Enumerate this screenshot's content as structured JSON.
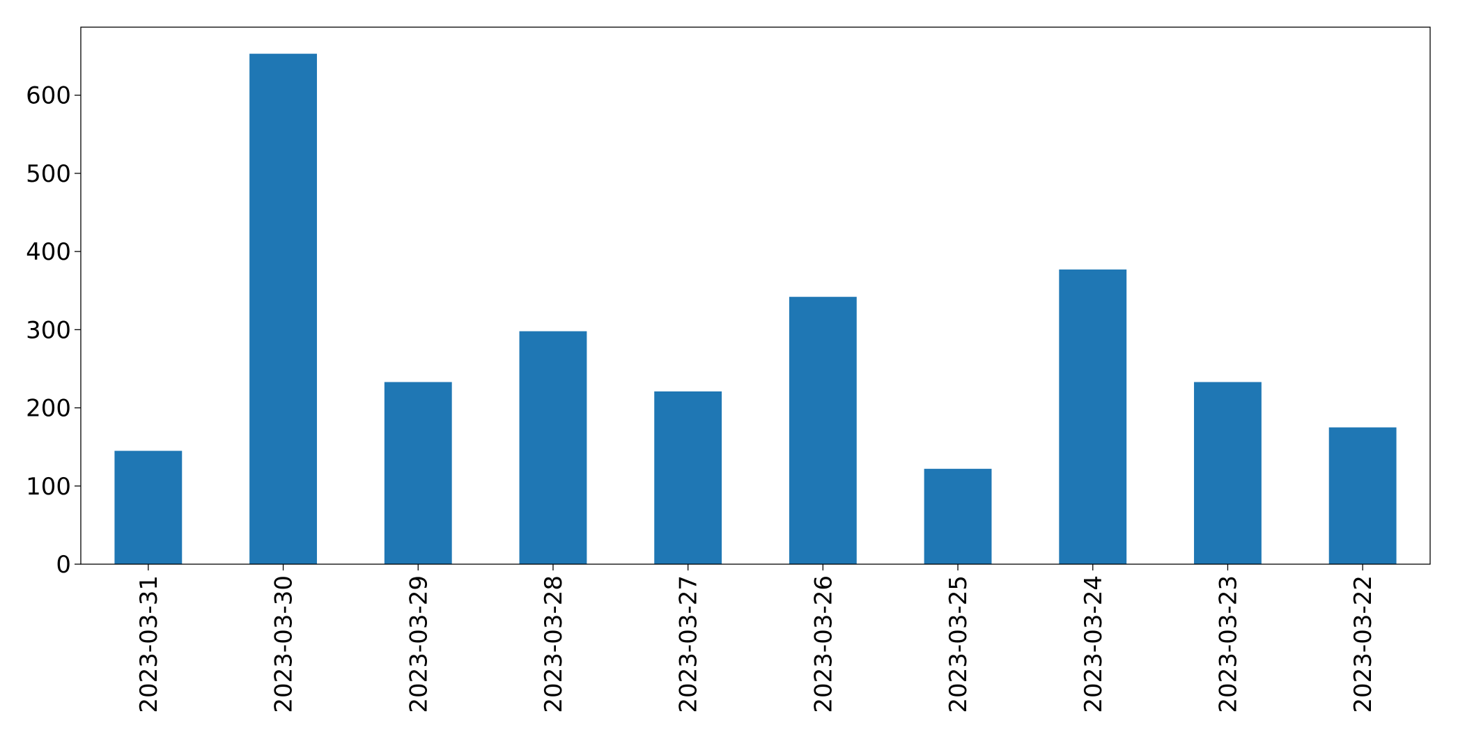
{
  "chart_data": {
    "type": "bar",
    "categories": [
      "2023-03-31",
      "2023-03-30",
      "2023-03-29",
      "2023-03-28",
      "2023-03-27",
      "2023-03-26",
      "2023-03-25",
      "2023-03-24",
      "2023-03-23",
      "2023-03-22"
    ],
    "values": [
      145,
      653,
      233,
      298,
      221,
      342,
      122,
      377,
      233,
      175
    ],
    "color": "#1f77b4",
    "ylim": [
      0,
      687
    ],
    "yticks": [
      0,
      100,
      200,
      300,
      400,
      500,
      600
    ],
    "grid": false
  }
}
